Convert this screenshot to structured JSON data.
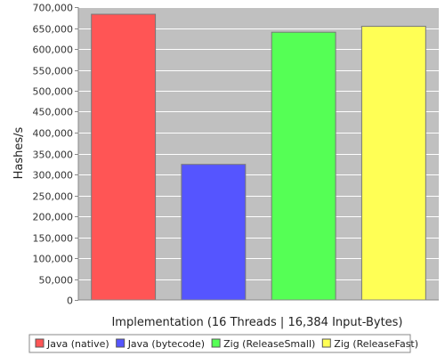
{
  "chart_data": {
    "type": "bar",
    "categories": [
      "Java (native)",
      "Java (bytecode)",
      "Zig (ReleaseSmall)",
      "Zig (ReleaseFast)"
    ],
    "values": [
      683000,
      324000,
      640000,
      654000
    ],
    "colors": [
      "#ff5555",
      "#5555ff",
      "#55ff55",
      "#ffff55"
    ],
    "title": "",
    "xlabel": "Implementation (16 Threads | 16,384 Input-Bytes)",
    "ylabel": "Hashes/s",
    "ylim": [
      0,
      700000
    ],
    "yticks": [
      "0",
      "50,000",
      "100,000",
      "150,000",
      "200,000",
      "250,000",
      "300,000",
      "350,000",
      "400,000",
      "450,000",
      "500,000",
      "550,000",
      "600,000",
      "650,000",
      "700,000"
    ],
    "grid": true,
    "legend": {
      "placement": "bottom",
      "entries": [
        "Java (native)",
        "Java (bytecode)",
        "Zig (ReleaseSmall)",
        "Zig (ReleaseFast)"
      ]
    }
  }
}
